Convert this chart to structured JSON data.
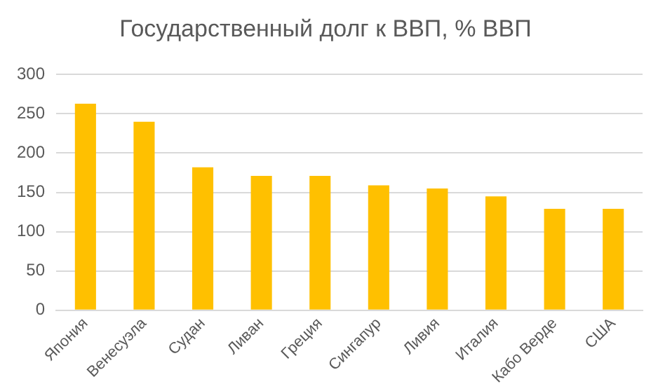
{
  "chart_data": {
    "type": "bar",
    "title": "Государственный долг к ВВП, % ВВП",
    "categories": [
      "Япония",
      "Венесуэла",
      "Судан",
      "Ливан",
      "Греция",
      "Сингапур",
      "Ливия",
      "Италия",
      "Кабо Верде",
      "США"
    ],
    "values": [
      263,
      240,
      182,
      171,
      171,
      159,
      155,
      145,
      129,
      129
    ],
    "color": "#ffc000",
    "ylim": [
      0,
      300
    ],
    "yticks": [
      0,
      50,
      100,
      150,
      200,
      250,
      300
    ],
    "grid": "y"
  }
}
